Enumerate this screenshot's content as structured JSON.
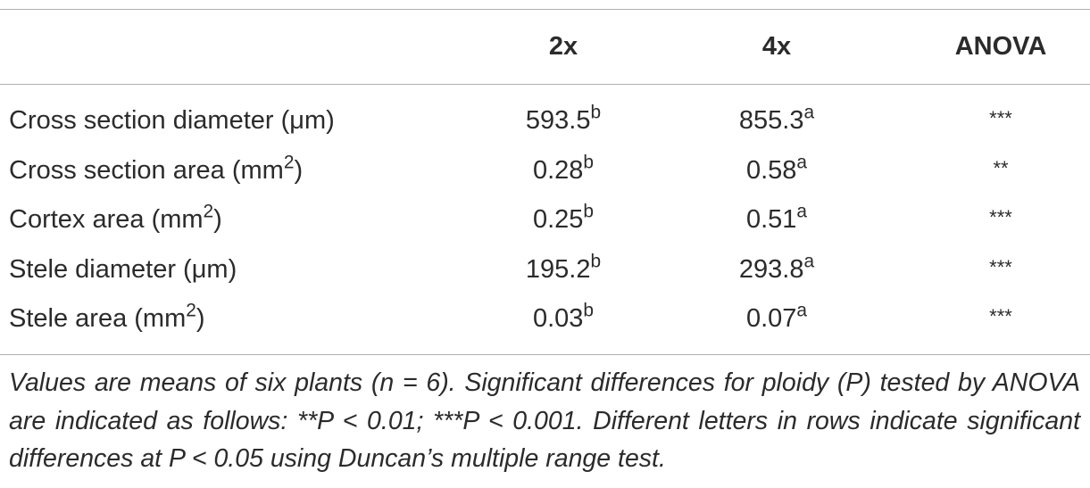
{
  "table": {
    "header": [
      "2x",
      "4x",
      "ANOVA"
    ],
    "rows": [
      {
        "label": "Cross section diameter (μm)",
        "cells": [
          {
            "value": "593.5",
            "sup": "b"
          },
          {
            "value": "855.3",
            "sup": "a"
          }
        ],
        "anova": "***"
      },
      {
        "label": "Cross section area (mm",
        "label_sup": "2",
        "label_end": ")",
        "cells": [
          {
            "value": "0.28",
            "sup": "b"
          },
          {
            "value": "0.58",
            "sup": "a"
          }
        ],
        "anova": "**"
      },
      {
        "label": "Cortex area (mm",
        "label_sup": "2",
        "label_end": ")",
        "cells": [
          {
            "value": "0.25",
            "sup": "b"
          },
          {
            "value": "0.51",
            "sup": "a"
          }
        ],
        "anova": "***"
      },
      {
        "label": "Stele diameter (μm)",
        "cells": [
          {
            "value": "195.2",
            "sup": "b"
          },
          {
            "value": "293.8",
            "sup": "a"
          }
        ],
        "anova": "***"
      },
      {
        "label": "Stele area (mm",
        "label_sup": "2",
        "label_end": ")",
        "cells": [
          {
            "value": "0.03",
            "sup": "b"
          },
          {
            "value": "0.07",
            "sup": "a"
          }
        ],
        "anova": "***"
      }
    ],
    "footnote": "Values are means of six plants (n = 6). Significant differences for ploidy (P) tested by ANOVA are indicated as follows: **P < 0.01; ***P < 0.001. Different letters in rows indicate significant differences at P < 0.05 using Duncan’s multiple range test."
  }
}
